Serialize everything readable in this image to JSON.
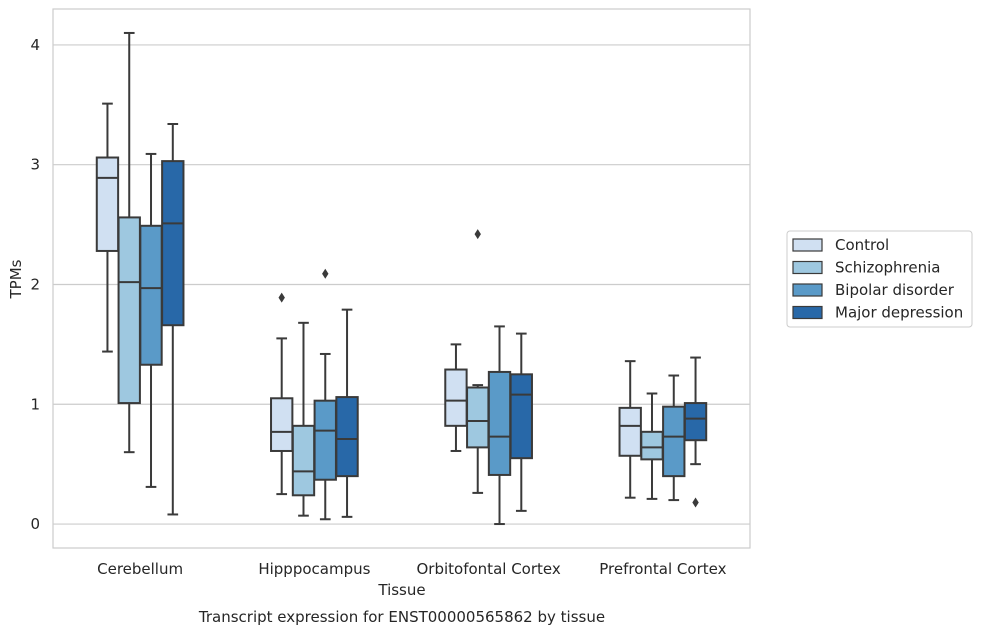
{
  "chart_data": {
    "type": "box",
    "title": "",
    "caption": "Transcript expression for ENST00000565862 by tissue",
    "xlabel": "Tissue",
    "ylabel": "TPMs",
    "ylim": [
      -0.2,
      4.3
    ],
    "yticks": [
      0,
      1,
      2,
      3,
      4
    ],
    "grid": "horizontal",
    "legend_position": "right",
    "categories": [
      "Cerebellum",
      "Hipppocampus",
      "Orbitofontal Cortex",
      "Prefrontal Cortex"
    ],
    "series": [
      {
        "name": "Control",
        "color": "#d0e0f2",
        "boxes": [
          {
            "whisker_low": 1.44,
            "q1": 2.28,
            "median": 2.89,
            "q3": 3.06,
            "whisker_high": 3.51,
            "outliers": []
          },
          {
            "whisker_low": 0.25,
            "q1": 0.61,
            "median": 0.77,
            "q3": 1.05,
            "whisker_high": 1.55,
            "outliers": [
              1.89
            ]
          },
          {
            "whisker_low": 0.61,
            "q1": 0.82,
            "median": 1.03,
            "q3": 1.29,
            "whisker_high": 1.5,
            "outliers": []
          },
          {
            "whisker_low": 0.22,
            "q1": 0.57,
            "median": 0.82,
            "q3": 0.97,
            "whisker_high": 1.36,
            "outliers": []
          }
        ]
      },
      {
        "name": "Schizophrenia",
        "color": "#9ec8e0",
        "boxes": [
          {
            "whisker_low": 0.6,
            "q1": 1.01,
            "median": 2.02,
            "q3": 2.56,
            "whisker_high": 4.1,
            "outliers": []
          },
          {
            "whisker_low": 0.07,
            "q1": 0.24,
            "median": 0.44,
            "q3": 0.82,
            "whisker_high": 1.68,
            "outliers": []
          },
          {
            "whisker_low": 0.26,
            "q1": 0.64,
            "median": 0.86,
            "q3": 1.14,
            "whisker_high": 1.16,
            "outliers": [
              2.42
            ]
          },
          {
            "whisker_low": 0.21,
            "q1": 0.54,
            "median": 0.64,
            "q3": 0.77,
            "whisker_high": 1.09,
            "outliers": []
          }
        ]
      },
      {
        "name": "Bipolar disorder",
        "color": "#5a9ac8",
        "boxes": [
          {
            "whisker_low": 0.31,
            "q1": 1.33,
            "median": 1.97,
            "q3": 2.49,
            "whisker_high": 3.09,
            "outliers": []
          },
          {
            "whisker_low": 0.04,
            "q1": 0.37,
            "median": 0.78,
            "q3": 1.03,
            "whisker_high": 1.42,
            "outliers": [
              2.09
            ]
          },
          {
            "whisker_low": 0.0,
            "q1": 0.41,
            "median": 0.73,
            "q3": 1.27,
            "whisker_high": 1.65,
            "outliers": []
          },
          {
            "whisker_low": 0.2,
            "q1": 0.4,
            "median": 0.73,
            "q3": 0.98,
            "whisker_high": 1.24,
            "outliers": []
          }
        ]
      },
      {
        "name": "Major depression",
        "color": "#2868a8",
        "boxes": [
          {
            "whisker_low": 0.08,
            "q1": 1.66,
            "median": 2.51,
            "q3": 3.03,
            "whisker_high": 3.34,
            "outliers": []
          },
          {
            "whisker_low": 0.06,
            "q1": 0.4,
            "median": 0.71,
            "q3": 1.06,
            "whisker_high": 1.79,
            "outliers": []
          },
          {
            "whisker_low": 0.11,
            "q1": 0.55,
            "median": 1.08,
            "q3": 1.25,
            "whisker_high": 1.59,
            "outliers": []
          },
          {
            "whisker_low": 0.5,
            "q1": 0.7,
            "median": 0.88,
            "q3": 1.01,
            "whisker_high": 1.39,
            "outliers": [
              0.18
            ]
          }
        ]
      }
    ]
  }
}
